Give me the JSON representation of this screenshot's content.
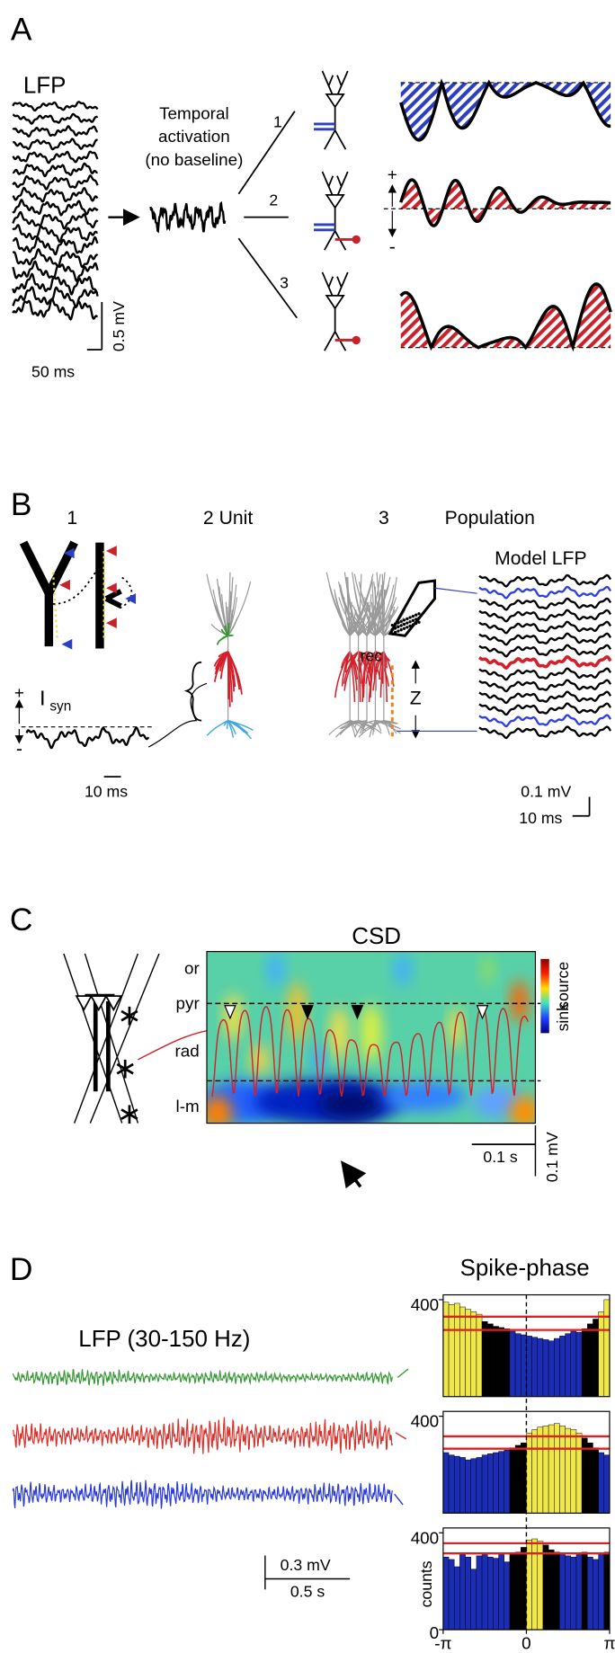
{
  "panel_a": {
    "letter": "A",
    "lfp_label": "LFP",
    "caption": [
      "Temporal",
      "activation",
      "(no baseline)"
    ],
    "branches": [
      "1",
      "2",
      "3"
    ],
    "plus": "+",
    "minus": "-",
    "time_scale": "50 ms",
    "amp_scale": "0.5 mV"
  },
  "panel_b": {
    "letter": "B",
    "step1": "1",
    "step2": "2 Unit",
    "step3": "3",
    "population": "Population",
    "model_lfp": "Model LFP",
    "rec": "rec",
    "isyn_main": "I",
    "isyn_sub": "syn",
    "plus": "+",
    "minus": "-",
    "left_time_scale": "10 ms",
    "z": "Z",
    "amp_scale": "0.1 mV",
    "time_scale": "10 ms"
  },
  "panel_c": {
    "letter": "C",
    "title": "CSD",
    "layers": [
      "or",
      "pyr",
      "rad",
      "l-m"
    ],
    "colorbar": [
      "source",
      "sink"
    ],
    "time_scale": "0.1 s",
    "amp_scale": "0.1 mV"
  },
  "panel_d": {
    "letter": "D",
    "title": "Spike-phase",
    "lfp_title": "LFP (30-150 Hz)",
    "amp_scale": "0.3 mV",
    "time_scale": "0.5 s",
    "ylabel": "counts",
    "xlim": [
      -3.14159,
      3.14159
    ],
    "xticks": [
      {
        "value": -3.14159,
        "label": "-π"
      },
      0,
      {
        "value": 3.14159,
        "label": "π"
      }
    ],
    "histograms": [
      {
        "ylim": [
          0,
          420
        ],
        "yticks": [
          400
        ],
        "thresholds": [
          330,
          275
        ],
        "values": [
          390,
          380,
          385,
          370,
          360,
          350,
          340,
          310,
          300,
          290,
          285,
          280,
          270,
          260,
          255,
          250,
          245,
          240,
          235,
          230,
          240,
          250,
          260,
          270,
          265,
          280,
          300,
          320,
          350,
          400
        ]
      },
      {
        "ylim": [
          0,
          420
        ],
        "yticks": [
          400
        ],
        "thresholds": [
          317,
          266
        ],
        "values": [
          250,
          240,
          235,
          230,
          220,
          225,
          230,
          240,
          245,
          250,
          255,
          260,
          270,
          280,
          290,
          330,
          345,
          355,
          360,
          365,
          370,
          360,
          350,
          345,
          330,
          310,
          290,
          270,
          250,
          240
        ]
      },
      {
        "ylim": [
          0,
          420
        ],
        "yticks": [
          0,
          400
        ],
        "thresholds": [
          357,
          315
        ],
        "values": [
          300,
          290,
          260,
          310,
          300,
          250,
          305,
          310,
          300,
          295,
          310,
          280,
          315,
          320,
          340,
          370,
          375,
          365,
          350,
          330,
          320,
          310,
          305,
          300,
          310,
          320,
          300,
          290,
          310,
          320
        ]
      }
    ]
  }
}
